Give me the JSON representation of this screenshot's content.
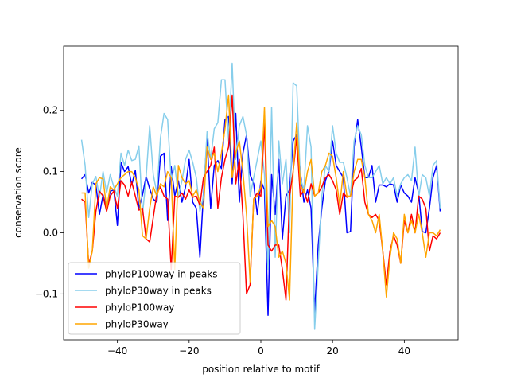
{
  "chart_data": {
    "type": "line",
    "title": "",
    "xlabel": "position relative to motif",
    "ylabel": "conservation score",
    "xlim": [
      -55,
      55
    ],
    "ylim": [
      -0.175,
      0.305
    ],
    "xticks": [
      -40,
      -20,
      0,
      20,
      40
    ],
    "xtick_labels": [
      "−40",
      "−20",
      "0",
      "20",
      "40"
    ],
    "yticks": [
      -0.1,
      0.0,
      0.1,
      0.2
    ],
    "ytick_labels": [
      "−0.1",
      "0.0",
      "0.1",
      "0.2"
    ],
    "grid": false,
    "legend_position": "lower-left",
    "x": [
      -50,
      -49,
      -48,
      -47,
      -46,
      -45,
      -44,
      -43,
      -42,
      -41,
      -40,
      -39,
      -38,
      -37,
      -36,
      -35,
      -34,
      -33,
      -32,
      -31,
      -30,
      -29,
      -28,
      -27,
      -26,
      -25,
      -24,
      -23,
      -22,
      -21,
      -20,
      -19,
      -18,
      -17,
      -16,
      -15,
      -14,
      -13,
      -12,
      -11,
      -10,
      -9,
      -8,
      -7,
      -6,
      -5,
      -4,
      -3,
      -2,
      -1,
      0,
      1,
      2,
      3,
      4,
      5,
      6,
      7,
      8,
      9,
      10,
      11,
      12,
      13,
      14,
      15,
      16,
      17,
      18,
      19,
      20,
      21,
      22,
      23,
      24,
      25,
      26,
      27,
      28,
      29,
      30,
      31,
      32,
      33,
      34,
      35,
      36,
      37,
      38,
      39,
      40,
      41,
      42,
      43,
      44,
      45,
      46,
      47,
      48,
      49,
      50
    ],
    "series": [
      {
        "name": "phyloP100way in peaks",
        "color": "#0000ff",
        "values": [
          0.088,
          0.095,
          0.065,
          0.082,
          0.078,
          0.03,
          0.062,
          0.04,
          0.068,
          0.07,
          0.012,
          0.115,
          0.1,
          0.108,
          0.078,
          0.102,
          0.04,
          0.062,
          0.092,
          0.072,
          0.055,
          0.05,
          0.125,
          0.13,
          0.02,
          0.108,
          0.06,
          0.085,
          0.05,
          0.075,
          0.12,
          0.05,
          0.04,
          -0.04,
          0.065,
          0.155,
          0.04,
          0.11,
          0.118,
          0.105,
          0.185,
          0.19,
          0.08,
          0.195,
          0.05,
          0.13,
          0.16,
          0.095,
          0.08,
          0.03,
          0.085,
          0.07,
          -0.135,
          0.095,
          0.03,
          0.12,
          -0.01,
          0.06,
          0.07,
          0.15,
          0.16,
          0.1,
          0.05,
          0.07,
          0.04,
          -0.13,
          -0.02,
          0.04,
          0.085,
          0.1,
          0.15,
          0.11,
          0.1,
          0.09,
          0.0,
          0.002,
          0.14,
          0.185,
          0.14,
          0.09,
          0.09,
          0.11,
          0.05,
          0.078,
          0.078,
          0.075,
          0.08,
          0.078,
          0.05,
          0.078,
          0.065,
          0.06,
          0.05,
          0.09,
          0.065,
          0.002,
          0.0,
          0.04,
          0.09,
          0.11,
          0.035
        ]
      },
      {
        "name": "phyloP30way in peaks",
        "color": "#87ceeb",
        "values": [
          0.152,
          0.11,
          0.025,
          0.08,
          0.092,
          0.058,
          0.1,
          0.065,
          0.095,
          0.075,
          0.06,
          0.13,
          0.11,
          0.135,
          0.118,
          0.12,
          0.142,
          0.03,
          0.09,
          0.175,
          0.095,
          0.065,
          0.155,
          0.195,
          0.185,
          0.085,
          0.11,
          0.06,
          0.085,
          0.12,
          0.135,
          0.115,
          0.09,
          0.035,
          0.06,
          0.165,
          0.12,
          0.17,
          0.18,
          0.25,
          0.25,
          0.15,
          0.277,
          0.12,
          0.175,
          0.19,
          0.16,
          0.06,
          0.09,
          0.12,
          0.15,
          0.095,
          -0.06,
          0.205,
          -0.04,
          0.15,
          0.08,
          0.12,
          0.0,
          0.245,
          0.24,
          0.09,
          0.07,
          0.175,
          0.14,
          -0.158,
          -0.05,
          0.06,
          0.11,
          0.1,
          0.175,
          0.13,
          0.115,
          0.115,
          0.09,
          0.06,
          0.15,
          0.175,
          0.16,
          0.11,
          0.09,
          0.09,
          0.1,
          0.11,
          0.08,
          0.09,
          0.08,
          0.09,
          0.06,
          0.08,
          0.09,
          0.095,
          0.085,
          0.14,
          0.058,
          0.095,
          0.09,
          0.06,
          0.11,
          0.118,
          0.04
        ]
      },
      {
        "name": "phyloP100way",
        "color": "#ff0000",
        "values": [
          0.055,
          0.05,
          -0.052,
          -0.03,
          0.035,
          0.068,
          0.06,
          0.035,
          0.06,
          0.068,
          0.04,
          0.085,
          0.078,
          0.06,
          0.083,
          0.06,
          0.037,
          0.04,
          -0.01,
          -0.015,
          0.025,
          0.065,
          0.075,
          0.06,
          0.055,
          -0.06,
          0.06,
          0.058,
          0.065,
          0.055,
          0.07,
          0.058,
          0.06,
          0.045,
          0.09,
          0.1,
          0.11,
          0.14,
          0.04,
          0.09,
          0.12,
          0.14,
          0.225,
          0.08,
          0.12,
          0.028,
          -0.1,
          -0.085,
          0.055,
          0.065,
          0.06,
          0.18,
          -0.02,
          -0.03,
          -0.02,
          -0.02,
          -0.06,
          -0.11,
          0.06,
          0.1,
          0.155,
          0.06,
          0.07,
          0.05,
          0.08,
          0.06,
          0.065,
          0.075,
          0.09,
          0.095,
          0.085,
          0.07,
          0.03,
          0.065,
          0.058,
          0.06,
          0.085,
          0.09,
          0.105,
          0.05,
          0.03,
          0.025,
          0.03,
          0.02,
          -0.03,
          -0.085,
          -0.03,
          -0.005,
          -0.02,
          -0.05,
          0.02,
          0.0,
          0.03,
          0.0,
          0.06,
          0.055,
          0.04,
          -0.03,
          -0.005,
          -0.01,
          0.0
        ]
      },
      {
        "name": "phyloP30way",
        "color": "#ffa500",
        "values": [
          0.065,
          0.065,
          -0.058,
          -0.03,
          0.08,
          0.09,
          0.088,
          0.04,
          0.075,
          0.07,
          0.08,
          0.09,
          0.095,
          0.1,
          0.1,
          0.09,
          0.07,
          -0.005,
          -0.01,
          0.04,
          0.075,
          0.06,
          0.08,
          0.075,
          0.1,
          0.09,
          -0.06,
          0.11,
          0.09,
          0.08,
          0.085,
          0.06,
          0.07,
          0.05,
          0.04,
          0.14,
          0.12,
          0.13,
          0.1,
          0.13,
          0.17,
          0.225,
          0.09,
          0.13,
          0.15,
          0.1,
          0.03,
          -0.08,
          0.055,
          0.06,
          0.075,
          0.205,
          0.01,
          0.02,
          0.01,
          -0.04,
          -0.03,
          -0.05,
          -0.11,
          0.1,
          0.18,
          0.08,
          0.065,
          0.1,
          0.12,
          0.06,
          0.065,
          0.1,
          0.11,
          0.13,
          0.125,
          0.09,
          0.045,
          0.1,
          0.06,
          0.06,
          0.1,
          0.12,
          0.12,
          0.09,
          0.03,
          0.02,
          0.0,
          0.03,
          -0.03,
          -0.105,
          -0.04,
          0.0,
          -0.01,
          -0.05,
          0.03,
          0.0,
          0.02,
          0.0,
          0.03,
          0.0,
          -0.04,
          0.0,
          0.0,
          -0.005,
          0.005
        ]
      }
    ]
  }
}
